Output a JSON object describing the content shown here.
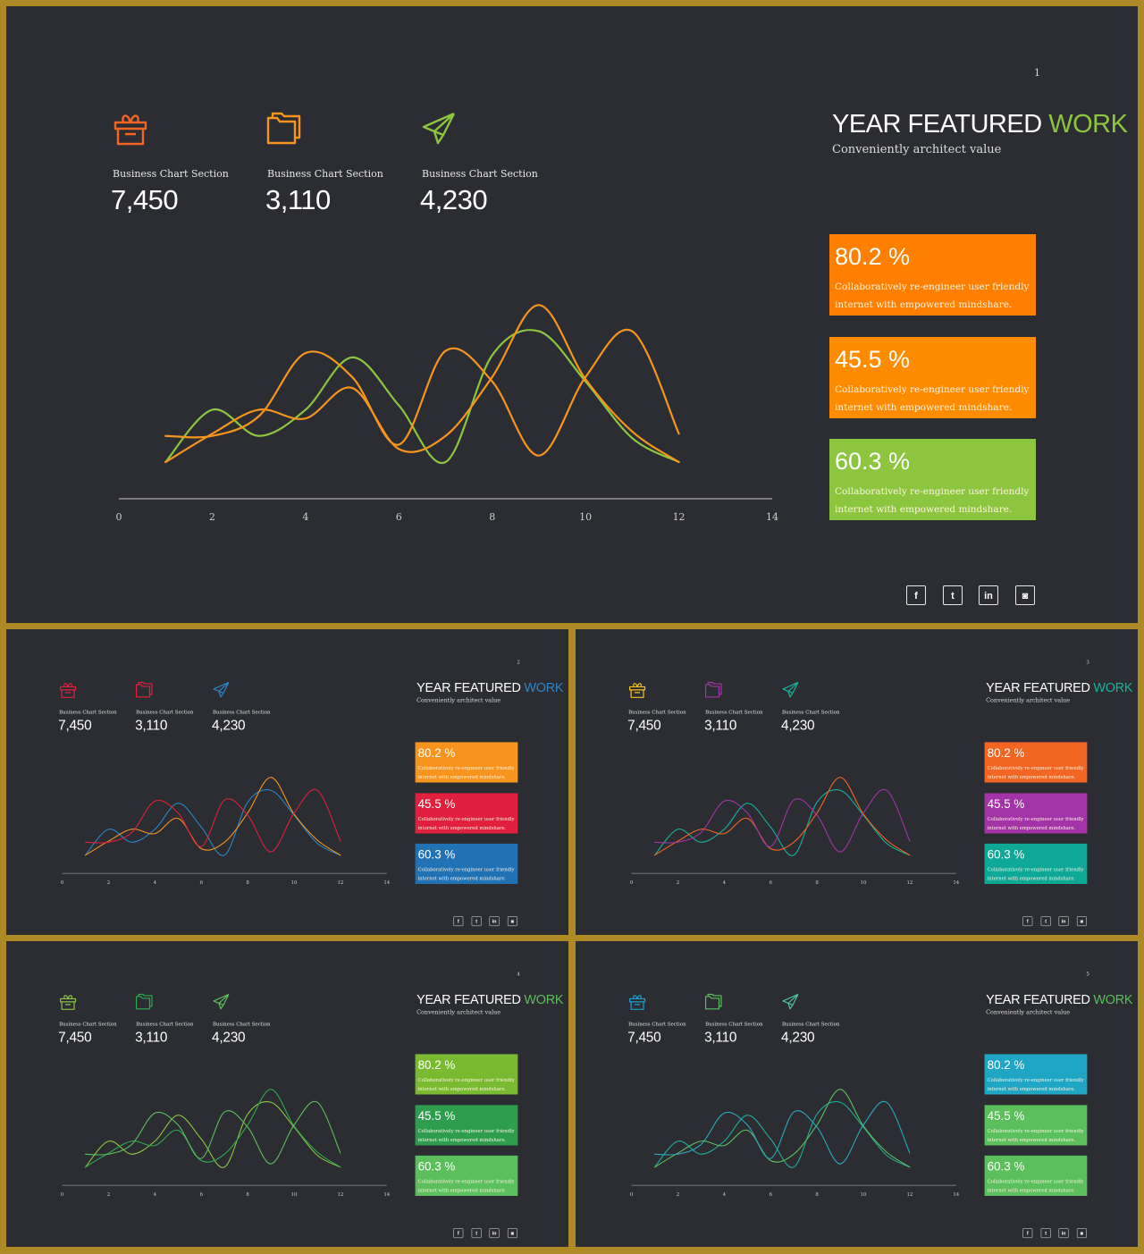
{
  "slides": [
    {
      "page_number": "1",
      "title_part1": "YEAR FEATURED ",
      "title_part2": "WORK",
      "subtitle": "Conveniently architect value",
      "title_accent": "#8cc63f",
      "icon_colors": [
        "#f26522",
        "#f7941d",
        "#8cc63f"
      ],
      "line_colors": [
        "#8cc63f",
        "#f7941d",
        "#f7941d"
      ],
      "card_colors": [
        "#ff7f00",
        "#ff8c00",
        "#8cc63f"
      ]
    },
    {
      "page_number": "2",
      "title_part1": "YEAR FEATURED ",
      "title_part2": "WORK",
      "subtitle": "Conveniently architect value",
      "title_accent": "#2a86c6",
      "icon_colors": [
        "#e0203c",
        "#e0203c",
        "#2a86c6"
      ],
      "line_colors": [
        "#2a86c6",
        "#f7941d",
        "#e0203c"
      ],
      "card_colors": [
        "#f7941d",
        "#e0203c",
        "#2171b5"
      ]
    },
    {
      "page_number": "3",
      "title_part1": "YEAR FEATURED ",
      "title_part2": "WORK",
      "subtitle": "Conveniently architect value",
      "title_accent": "#17b29c",
      "icon_colors": [
        "#f7c21d",
        "#a334a8",
        "#17b29c"
      ],
      "line_colors": [
        "#17b29c",
        "#f26522",
        "#a334a8"
      ],
      "card_colors": [
        "#f26522",
        "#a334a8",
        "#0ea896"
      ]
    },
    {
      "page_number": "4",
      "title_part1": "YEAR FEATURED ",
      "title_part2": "WORK",
      "subtitle": "Conveniently architect value",
      "title_accent": "#5bbf5b",
      "icon_colors": [
        "#8cc63f",
        "#2eaa4e",
        "#5bbf5b"
      ],
      "line_colors": [
        "#8cc63f",
        "#2eaa4e",
        "#5bbf5b"
      ],
      "card_colors": [
        "#7aba30",
        "#2e9e4e",
        "#5bbf5b"
      ]
    },
    {
      "page_number": "5",
      "title_part1": "YEAR FEATURED ",
      "title_part2": "WORK",
      "subtitle": "Conveniently architect value",
      "title_accent": "#5bbf5b",
      "icon_colors": [
        "#1f9fd0",
        "#5bbf5b",
        "#4fc2a0"
      ],
      "line_colors": [
        "#1fae9a",
        "#5bbf5b",
        "#2aa9c0"
      ],
      "card_colors": [
        "#1fa6c4",
        "#5bbf5b",
        "#5bbf5b"
      ]
    }
  ],
  "stats": [
    {
      "label": "Business Chart Section",
      "value": "7,450",
      "icon": "gift-box-icon"
    },
    {
      "label": "Business Chart Section",
      "value": "3,110",
      "icon": "folder-icon"
    },
    {
      "label": "Business Chart Section",
      "value": "4,230",
      "icon": "paper-plane-icon"
    }
  ],
  "cards": [
    {
      "percent": "80.2 %",
      "text": "Collaboratively re-engineer user friendly internet with empowered mindshare."
    },
    {
      "percent": "45.5 %",
      "text": "Collaboratively re-engineer user friendly internet with empowered mindshare."
    },
    {
      "percent": "60.3 %",
      "text": "Collaboratively re-engineer user friendly internet with empowered mindshare."
    }
  ],
  "social": [
    {
      "icon": "facebook-icon",
      "glyph": "f"
    },
    {
      "icon": "twitter-icon",
      "glyph": "t"
    },
    {
      "icon": "linkedin-icon",
      "glyph": "in"
    },
    {
      "icon": "instagram-icon",
      "glyph": "◙"
    }
  ],
  "chart_data": {
    "type": "line",
    "x_ticks": [
      "0",
      "2",
      "4",
      "6",
      "8",
      "10",
      "12",
      "14"
    ],
    "xlim": [
      0,
      14
    ],
    "ylim": [
      0,
      10
    ],
    "series": [
      {
        "x": [
          1,
          2,
          3,
          4,
          5,
          6,
          7,
          8,
          9,
          10,
          11,
          12
        ],
        "values": [
          0,
          2.4,
          1.2,
          2.4,
          4.8,
          2.6,
          0,
          4.9,
          6,
          3.7,
          1.1,
          0
        ]
      },
      {
        "x": [
          1,
          2,
          3,
          4,
          5,
          6,
          7,
          8,
          9,
          10,
          11,
          12
        ],
        "values": [
          0,
          1.3,
          2.4,
          2.0,
          3.4,
          0.6,
          1.2,
          3.9,
          7.2,
          3.8,
          1.4,
          0
        ]
      },
      {
        "x": [
          1,
          2,
          3,
          4,
          5,
          6,
          7,
          8,
          9,
          10,
          11,
          12
        ],
        "values": [
          1.2,
          1.2,
          2.1,
          5.0,
          3.9,
          0.8,
          5.1,
          3.7,
          0.3,
          3.9,
          6.0,
          1.3
        ]
      }
    ]
  }
}
